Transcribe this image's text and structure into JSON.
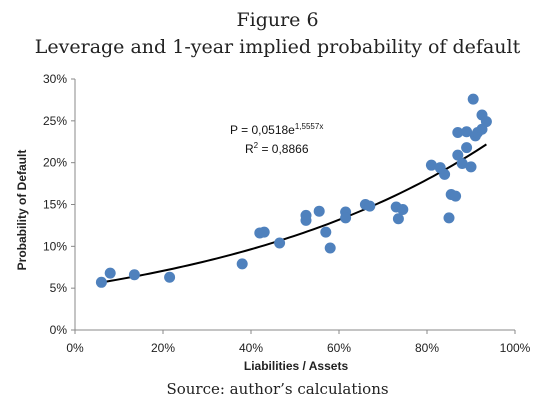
{
  "figure": {
    "number": "Figure 6",
    "title": "Leverage and 1-year implied probability of default",
    "source": "Source: author’s calculations"
  },
  "chart_data": {
    "type": "scatter",
    "xlabel": "Liabilities / Assets",
    "ylabel": "Probability of Default",
    "xlim": [
      0,
      1
    ],
    "ylim": [
      0,
      0.3
    ],
    "x_ticks": [
      "0%",
      "20%",
      "40%",
      "60%",
      "80%",
      "100%"
    ],
    "y_ticks": [
      "0%",
      "5%",
      "10%",
      "15%",
      "20%",
      "25%",
      "30%"
    ],
    "grid": false,
    "marker_color": "#4f81bd",
    "trendline_color": "#000000",
    "points": [
      {
        "x": 0.06,
        "y": 0.057
      },
      {
        "x": 0.08,
        "y": 0.068
      },
      {
        "x": 0.135,
        "y": 0.066
      },
      {
        "x": 0.215,
        "y": 0.063
      },
      {
        "x": 0.38,
        "y": 0.079
      },
      {
        "x": 0.42,
        "y": 0.116
      },
      {
        "x": 0.43,
        "y": 0.117
      },
      {
        "x": 0.465,
        "y": 0.104
      },
      {
        "x": 0.525,
        "y": 0.137
      },
      {
        "x": 0.525,
        "y": 0.131
      },
      {
        "x": 0.555,
        "y": 0.142
      },
      {
        "x": 0.57,
        "y": 0.117
      },
      {
        "x": 0.58,
        "y": 0.098
      },
      {
        "x": 0.615,
        "y": 0.141
      },
      {
        "x": 0.615,
        "y": 0.134
      },
      {
        "x": 0.66,
        "y": 0.15
      },
      {
        "x": 0.67,
        "y": 0.148
      },
      {
        "x": 0.73,
        "y": 0.147
      },
      {
        "x": 0.735,
        "y": 0.133
      },
      {
        "x": 0.745,
        "y": 0.144
      },
      {
        "x": 0.81,
        "y": 0.197
      },
      {
        "x": 0.83,
        "y": 0.194
      },
      {
        "x": 0.84,
        "y": 0.186
      },
      {
        "x": 0.85,
        "y": 0.134
      },
      {
        "x": 0.855,
        "y": 0.162
      },
      {
        "x": 0.865,
        "y": 0.16
      },
      {
        "x": 0.87,
        "y": 0.209
      },
      {
        "x": 0.87,
        "y": 0.236
      },
      {
        "x": 0.88,
        "y": 0.199
      },
      {
        "x": 0.89,
        "y": 0.218
      },
      {
        "x": 0.89,
        "y": 0.237
      },
      {
        "x": 0.9,
        "y": 0.195
      },
      {
        "x": 0.905,
        "y": 0.276
      },
      {
        "x": 0.91,
        "y": 0.232
      },
      {
        "x": 0.915,
        "y": 0.236
      },
      {
        "x": 0.925,
        "y": 0.257
      },
      {
        "x": 0.925,
        "y": 0.24
      },
      {
        "x": 0.935,
        "y": 0.249
      }
    ],
    "trendline": {
      "type": "exponential",
      "a": 0.0518,
      "b": 1.5557,
      "x_range": [
        0.06,
        0.935
      ],
      "equation_label": "P = 0,0518e",
      "equation_exponent": "1,5557x",
      "r2_label": "R",
      "r2_exponent": "2",
      "r2_value": " = 0,8866"
    }
  }
}
